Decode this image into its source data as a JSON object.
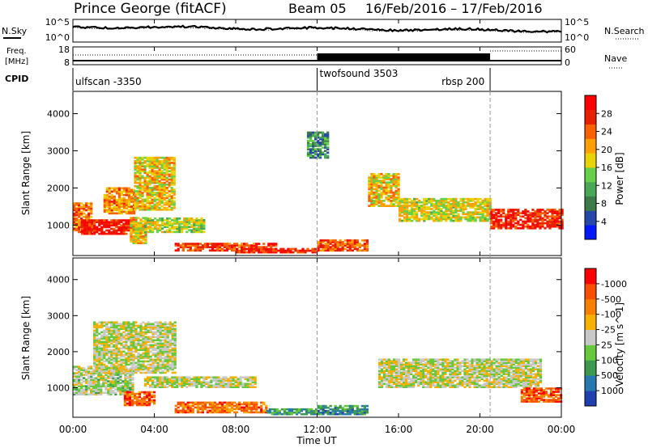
{
  "header": {
    "station": "Prince George (fitACF)",
    "beam": "Beam 05",
    "date_range": "16/Feb/2016 – 17/Feb/2016"
  },
  "noise_panel": {
    "left_label": "N.Sky",
    "right_label": "N.Search",
    "left_ticks": [
      "10^5",
      "10^0"
    ],
    "right_ticks": [
      "10^5",
      "10^0"
    ]
  },
  "freq_panel": {
    "left_label_top": "Freq.",
    "left_label_bottom": "[MHz]",
    "right_label": "Nave",
    "left_ticks": [
      "18",
      "8"
    ],
    "right_ticks": [
      "60",
      "0"
    ]
  },
  "cpid_panel": {
    "label": "CPID",
    "modes": [
      {
        "name": "ulfscan -3350",
        "start_hour": 0
      },
      {
        "name": "twofsound 3503",
        "start_hour": 12
      },
      {
        "name": "rbsp 200",
        "start_hour": 20.5
      }
    ]
  },
  "time_axis": {
    "xlabel": "Time UT",
    "tick_labels": [
      "00:00",
      "04:00",
      "08:00",
      "12:00",
      "16:00",
      "20:00",
      "00:00"
    ],
    "tick_hours": [
      0,
      4,
      8,
      12,
      16,
      20,
      24
    ],
    "range_hours": [
      0,
      24
    ],
    "mode_change_hours": [
      12,
      20.5
    ]
  },
  "chart_data": [
    {
      "type": "heatmap",
      "quantity": "power",
      "ylabel": "Slant Range [km]",
      "yticks": [
        1000,
        2000,
        3000,
        4000
      ],
      "ylim": [
        180,
        4600
      ],
      "colorbar": {
        "label": "Power [dB]",
        "tick_labels": [
          "4",
          "8",
          "12",
          "16",
          "20",
          "24",
          "28"
        ],
        "range": [
          0,
          30
        ],
        "colors": [
          "#0018ff",
          "#2648a8",
          "#3c7a48",
          "#48a858",
          "#66d048",
          "#e8d400",
          "#ffa000",
          "#f86000",
          "#e82000",
          "#ff0000"
        ]
      },
      "regions": [
        {
          "h": [
            0.0,
            0.9
          ],
          "r": [
            800,
            1600
          ],
          "level": 0.75
        },
        {
          "h": [
            0.4,
            3.0
          ],
          "r": [
            750,
            1150
          ],
          "level": 0.95
        },
        {
          "h": [
            1.5,
            3.0
          ],
          "r": [
            1300,
            2000
          ],
          "level": 0.7
        },
        {
          "h": [
            3.0,
            5.0
          ],
          "r": [
            1400,
            2800
          ],
          "level": 0.6
        },
        {
          "h": [
            2.8,
            3.6
          ],
          "r": [
            500,
            1200
          ],
          "level": 0.6
        },
        {
          "h": [
            3.5,
            6.5
          ],
          "r": [
            800,
            1200
          ],
          "level": 0.5
        },
        {
          "h": [
            5.0,
            10.0
          ],
          "r": [
            300,
            500
          ],
          "level": 0.85
        },
        {
          "h": [
            8.0,
            12.0
          ],
          "r": [
            250,
            380
          ],
          "level": 0.9
        },
        {
          "h": [
            12.0,
            14.5
          ],
          "r": [
            300,
            600
          ],
          "level": 0.8
        },
        {
          "h": [
            14.5,
            16.0
          ],
          "r": [
            1500,
            2400
          ],
          "level": 0.6
        },
        {
          "h": [
            16.0,
            20.5
          ],
          "r": [
            1100,
            1700
          ],
          "level": 0.55
        },
        {
          "h": [
            20.5,
            24.0
          ],
          "r": [
            900,
            1400
          ],
          "level": 0.9
        },
        {
          "h": [
            11.5,
            12.5
          ],
          "r": [
            2800,
            3500
          ],
          "level": 0.25
        }
      ]
    },
    {
      "type": "heatmap",
      "quantity": "velocity",
      "ylabel": "Slant Range [km]",
      "yticks": [
        1000,
        2000,
        3000,
        4000
      ],
      "ylim": [
        180,
        4600
      ],
      "colorbar": {
        "label": "Velocity [m s^-1]",
        "tick_labels": [
          "1000",
          "500",
          "100",
          "25",
          "-25",
          "-100",
          "-500",
          "-1000"
        ],
        "range": [
          -1000,
          1000
        ],
        "colors": [
          "#2040b0",
          "#2878b0",
          "#3c9a50",
          "#66c83c",
          "#c8c8c8",
          "#f8b000",
          "#f88000",
          "#f85000",
          "#ff0000"
        ]
      },
      "regions": [
        {
          "h": [
            0.0,
            3.0
          ],
          "r": [
            800,
            1600
          ],
          "level": 0.45
        },
        {
          "h": [
            1.0,
            5.0
          ],
          "r": [
            1400,
            2800
          ],
          "level": 0.5
        },
        {
          "h": [
            2.5,
            4.0
          ],
          "r": [
            500,
            900
          ],
          "level": 0.85
        },
        {
          "h": [
            3.5,
            9.0
          ],
          "r": [
            1000,
            1300
          ],
          "level": 0.5
        },
        {
          "h": [
            5.0,
            9.5
          ],
          "r": [
            300,
            600
          ],
          "level": 0.8
        },
        {
          "h": [
            9.5,
            12.0
          ],
          "r": [
            250,
            400
          ],
          "level": 0.25
        },
        {
          "h": [
            12.0,
            14.5
          ],
          "r": [
            250,
            500
          ],
          "level": 0.2
        },
        {
          "h": [
            15.0,
            23.0
          ],
          "r": [
            1000,
            1800
          ],
          "level": 0.5
        },
        {
          "h": [
            22.0,
            24.0
          ],
          "r": [
            600,
            1000
          ],
          "level": 0.85
        }
      ]
    }
  ]
}
